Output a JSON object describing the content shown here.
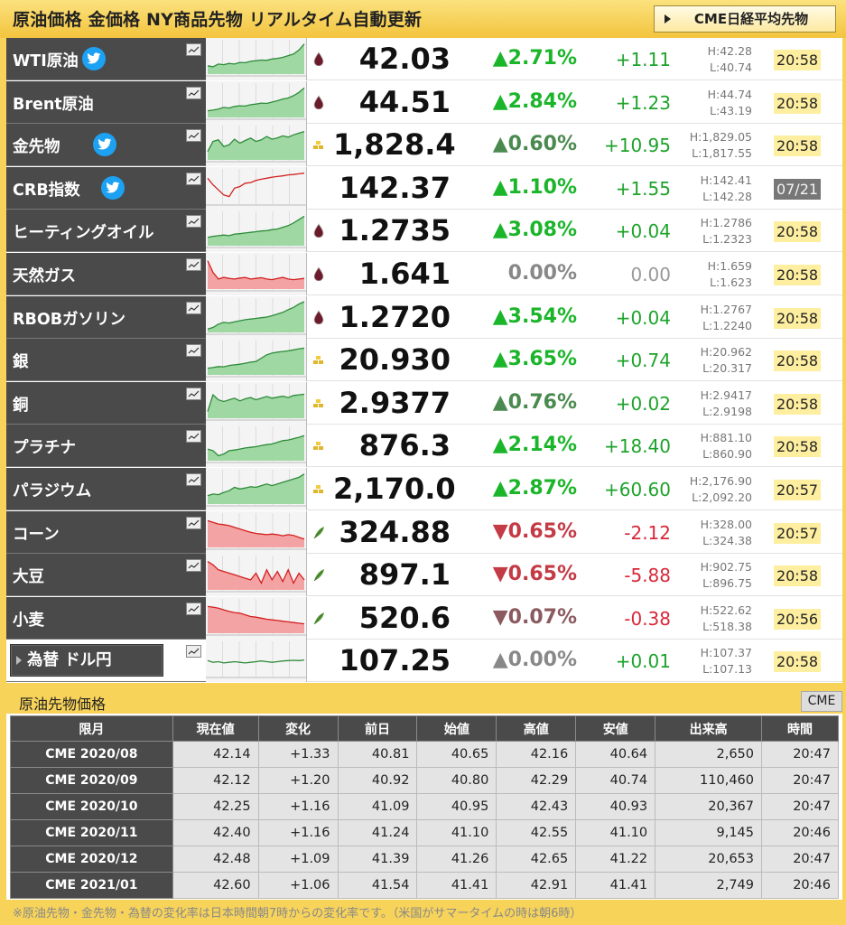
{
  "header": {
    "title": "原油価格 金価格 NY商品先物 リアルタイム自動更新",
    "nikkei_button": "CME日経平均先物"
  },
  "colors": {
    "up": "#1bb52a",
    "down": "#c43a45",
    "twitter": "#1da1f2",
    "time_badge": "#fdeea0",
    "header_bg": "#f7d35a",
    "name_bg": "#4a4a4a"
  },
  "commodities": [
    {
      "name": "WTI原油",
      "twitter": true,
      "category_icon": "oil-drop-icon",
      "price": "42.03",
      "pct": "▲2.71%",
      "pct_tone": "up-strong",
      "change": "+1.11",
      "change_tone": "up",
      "high": "H:42.28",
      "low": "L:40.74",
      "time": "20:58",
      "spark_tone": "green",
      "spark": [
        0.25,
        0.22,
        0.3,
        0.28,
        0.32,
        0.3,
        0.35,
        0.34,
        0.38,
        0.4,
        0.42,
        0.41,
        0.45,
        0.47,
        0.5,
        0.55,
        0.6,
        0.72,
        0.9
      ]
    },
    {
      "name": "Brent原油",
      "twitter": false,
      "category_icon": "oil-drop-icon",
      "price": "44.51",
      "pct": "▲2.84%",
      "pct_tone": "up-strong",
      "change": "+1.23",
      "change_tone": "up",
      "high": "H:44.74",
      "low": "L:43.19",
      "time": "20:58",
      "spark_tone": "green",
      "spark": [
        0.2,
        0.22,
        0.25,
        0.3,
        0.28,
        0.33,
        0.35,
        0.34,
        0.38,
        0.4,
        0.43,
        0.42,
        0.46,
        0.5,
        0.55,
        0.58,
        0.65,
        0.75,
        0.88
      ]
    },
    {
      "name": "金先物",
      "twitter": true,
      "category_icon": "gold-bar-icon",
      "price": "1,828.4",
      "pct": "▲0.60%",
      "pct_tone": "up-weak",
      "change": "+10.95",
      "change_tone": "up",
      "high": "H:1,829.05",
      "low": "L:1,817.55",
      "time": "20:58",
      "spark_tone": "green",
      "spark": [
        0.25,
        0.55,
        0.6,
        0.4,
        0.45,
        0.62,
        0.5,
        0.58,
        0.65,
        0.55,
        0.6,
        0.7,
        0.62,
        0.66,
        0.72,
        0.68,
        0.75,
        0.8,
        0.85
      ]
    },
    {
      "name": "CRB指数",
      "twitter": true,
      "category_icon": "",
      "price": "142.37",
      "pct": "▲1.10%",
      "pct_tone": "up-strong",
      "change": "+1.55",
      "change_tone": "up",
      "high": "H:142.41",
      "low": "L:142.28",
      "time": "07/21",
      "spark_tone": "red-line",
      "spark": [
        0.75,
        0.55,
        0.4,
        0.25,
        0.2,
        0.45,
        0.5,
        0.6,
        0.62,
        0.68,
        0.72,
        0.75,
        0.78,
        0.8,
        0.82,
        0.85,
        0.86,
        0.88,
        0.9
      ]
    },
    {
      "name": "ヒーティングオイル",
      "twitter": false,
      "category_icon": "oil-drop-icon",
      "price": "1.2735",
      "pct": "▲3.08%",
      "pct_tone": "up-strong",
      "change": "+0.04",
      "change_tone": "up",
      "high": "H:1.2786",
      "low": "L:1.2323",
      "time": "20:58",
      "spark_tone": "green",
      "spark": [
        0.25,
        0.28,
        0.3,
        0.32,
        0.3,
        0.35,
        0.36,
        0.38,
        0.4,
        0.42,
        0.44,
        0.45,
        0.48,
        0.5,
        0.55,
        0.6,
        0.68,
        0.78,
        0.88
      ]
    },
    {
      "name": "天然ガス",
      "twitter": false,
      "category_icon": "oil-drop-icon",
      "price": "1.641",
      "pct": "0.00%",
      "pct_tone": "zero",
      "change": "0.00",
      "change_tone": "zr",
      "high": "H:1.659",
      "low": "L:1.623",
      "time": "20:58",
      "spark_tone": "red",
      "spark": [
        0.85,
        0.5,
        0.3,
        0.35,
        0.32,
        0.3,
        0.33,
        0.35,
        0.3,
        0.32,
        0.34,
        0.3,
        0.28,
        0.32,
        0.35,
        0.3,
        0.28,
        0.3,
        0.32
      ]
    },
    {
      "name": "RBOBガソリン",
      "twitter": false,
      "category_icon": "oil-drop-icon",
      "price": "1.2720",
      "pct": "▲3.54%",
      "pct_tone": "up-strong",
      "change": "+0.04",
      "change_tone": "up",
      "high": "H:1.2767",
      "low": "L:1.2240",
      "time": "20:58",
      "spark_tone": "green",
      "spark": [
        0.1,
        0.15,
        0.25,
        0.3,
        0.28,
        0.32,
        0.35,
        0.38,
        0.4,
        0.42,
        0.44,
        0.46,
        0.5,
        0.55,
        0.6,
        0.68,
        0.75,
        0.85,
        0.92
      ]
    },
    {
      "name": "銀",
      "twitter": false,
      "category_icon": "gold-bar-icon",
      "price": "20.930",
      "pct": "▲3.65%",
      "pct_tone": "up-strong",
      "change": "+0.74",
      "change_tone": "up",
      "high": "H:20.962",
      "low": "L:20.317",
      "time": "20:58",
      "spark_tone": "green",
      "spark": [
        0.2,
        0.22,
        0.25,
        0.24,
        0.28,
        0.3,
        0.32,
        0.35,
        0.38,
        0.4,
        0.5,
        0.6,
        0.65,
        0.68,
        0.7,
        0.72,
        0.75,
        0.78,
        0.8
      ]
    },
    {
      "name": "銅",
      "twitter": false,
      "category_icon": "gold-bar-icon",
      "price": "2.9377",
      "pct": "▲0.76%",
      "pct_tone": "up-weak",
      "change": "+0.02",
      "change_tone": "up",
      "high": "H:2.9417",
      "low": "L:2.9198",
      "time": "20:58",
      "spark_tone": "green",
      "spark": [
        0.2,
        0.7,
        0.55,
        0.5,
        0.55,
        0.6,
        0.52,
        0.58,
        0.62,
        0.55,
        0.6,
        0.65,
        0.6,
        0.63,
        0.66,
        0.62,
        0.68,
        0.7,
        0.72
      ]
    },
    {
      "name": "プラチナ",
      "twitter": false,
      "category_icon": "gold-bar-icon",
      "price": "876.3",
      "pct": "▲2.14%",
      "pct_tone": "up-strong",
      "change": "+18.40",
      "change_tone": "up",
      "high": "H:881.10",
      "low": "L:860.90",
      "time": "20:58",
      "spark_tone": "green",
      "spark": [
        0.35,
        0.3,
        0.15,
        0.2,
        0.3,
        0.32,
        0.35,
        0.38,
        0.4,
        0.42,
        0.45,
        0.48,
        0.5,
        0.55,
        0.6,
        0.62,
        0.66,
        0.7,
        0.75
      ]
    },
    {
      "name": "パラジウム",
      "twitter": false,
      "category_icon": "gold-bar-icon",
      "price": "2,170.0",
      "pct": "▲2.87%",
      "pct_tone": "up-strong",
      "change": "+60.60",
      "change_tone": "up",
      "high": "H:2,176.90",
      "low": "L:2,092.20",
      "time": "20:57",
      "spark_tone": "green",
      "spark": [
        0.25,
        0.3,
        0.28,
        0.35,
        0.4,
        0.5,
        0.45,
        0.48,
        0.52,
        0.5,
        0.55,
        0.6,
        0.55,
        0.6,
        0.65,
        0.7,
        0.75,
        0.8,
        0.9
      ]
    },
    {
      "name": "コーン",
      "twitter": false,
      "category_icon": "leaf-icon",
      "price": "324.88",
      "pct": "▼0.65%",
      "pct_tone": "down",
      "change": "-2.12",
      "change_tone": "dn",
      "high": "H:328.00",
      "low": "L:324.38",
      "time": "20:57",
      "spark_tone": "red",
      "spark": [
        0.8,
        0.75,
        0.7,
        0.68,
        0.65,
        0.6,
        0.55,
        0.5,
        0.45,
        0.42,
        0.4,
        0.38,
        0.4,
        0.38,
        0.35,
        0.38,
        0.36,
        0.3,
        0.25
      ]
    },
    {
      "name": "大豆",
      "twitter": false,
      "category_icon": "leaf-icon",
      "price": "897.1",
      "pct": "▼0.65%",
      "pct_tone": "down",
      "change": "-5.88",
      "change_tone": "dn",
      "high": "H:902.75",
      "low": "L:896.75",
      "time": "20:58",
      "spark_tone": "red",
      "spark": [
        0.85,
        0.75,
        0.6,
        0.55,
        0.5,
        0.45,
        0.4,
        0.35,
        0.3,
        0.5,
        0.2,
        0.6,
        0.3,
        0.55,
        0.25,
        0.6,
        0.2,
        0.5,
        0.3
      ]
    },
    {
      "name": "小麦",
      "twitter": false,
      "category_icon": "leaf-icon",
      "price": "520.6",
      "pct": "▼0.07%",
      "pct_tone": "down-weak",
      "change": "-0.38",
      "change_tone": "dn",
      "high": "H:522.62",
      "low": "L:518.38",
      "time": "20:56",
      "spark_tone": "red",
      "spark": [
        0.8,
        0.78,
        0.75,
        0.7,
        0.65,
        0.62,
        0.6,
        0.55,
        0.5,
        0.48,
        0.45,
        0.42,
        0.4,
        0.38,
        0.36,
        0.34,
        0.32,
        0.3,
        0.28
      ]
    },
    {
      "name": "為替 ドル円",
      "twitter": false,
      "category_icon": "",
      "price": "107.25",
      "pct": "▲0.00%",
      "pct_tone": "zero",
      "change": "+0.01",
      "change_tone": "up",
      "high": "H:107.37",
      "low": "L:107.13",
      "time": "20:58",
      "spark_tone": "green-line",
      "spark": [
        0.45,
        0.4,
        0.42,
        0.38,
        0.4,
        0.42,
        0.4,
        0.38,
        0.4,
        0.42,
        0.44,
        0.42,
        0.4,
        0.42,
        0.44,
        0.45,
        0.46,
        0.45,
        0.47
      ]
    }
  ],
  "futures": {
    "title": "原油先物価格",
    "source_button": "CME",
    "headers": [
      "限月",
      "現在値",
      "変化",
      "前日",
      "始値",
      "高値",
      "安値",
      "出来高",
      "時間"
    ],
    "rows": [
      [
        "CME 2020/08",
        "42.14",
        "+1.33",
        "40.81",
        "40.65",
        "42.16",
        "40.64",
        "2,650",
        "20:47"
      ],
      [
        "CME 2020/09",
        "42.12",
        "+1.20",
        "40.92",
        "40.80",
        "42.29",
        "40.74",
        "110,460",
        "20:47"
      ],
      [
        "CME 2020/10",
        "42.25",
        "+1.16",
        "41.09",
        "40.95",
        "42.43",
        "40.93",
        "20,367",
        "20:47"
      ],
      [
        "CME 2020/11",
        "42.40",
        "+1.16",
        "41.24",
        "41.10",
        "42.55",
        "41.10",
        "9,145",
        "20:46"
      ],
      [
        "CME 2020/12",
        "42.48",
        "+1.09",
        "41.39",
        "41.26",
        "42.65",
        "41.22",
        "20,653",
        "20:47"
      ],
      [
        "CME 2021/01",
        "42.60",
        "+1.06",
        "41.54",
        "41.41",
        "42.91",
        "41.41",
        "2,749",
        "20:46"
      ]
    ]
  },
  "footnote": "※原油先物・金先物・為替の変化率は日本時間朝7時からの変化率です。（米国がサマータイムの時は朝6時）"
}
